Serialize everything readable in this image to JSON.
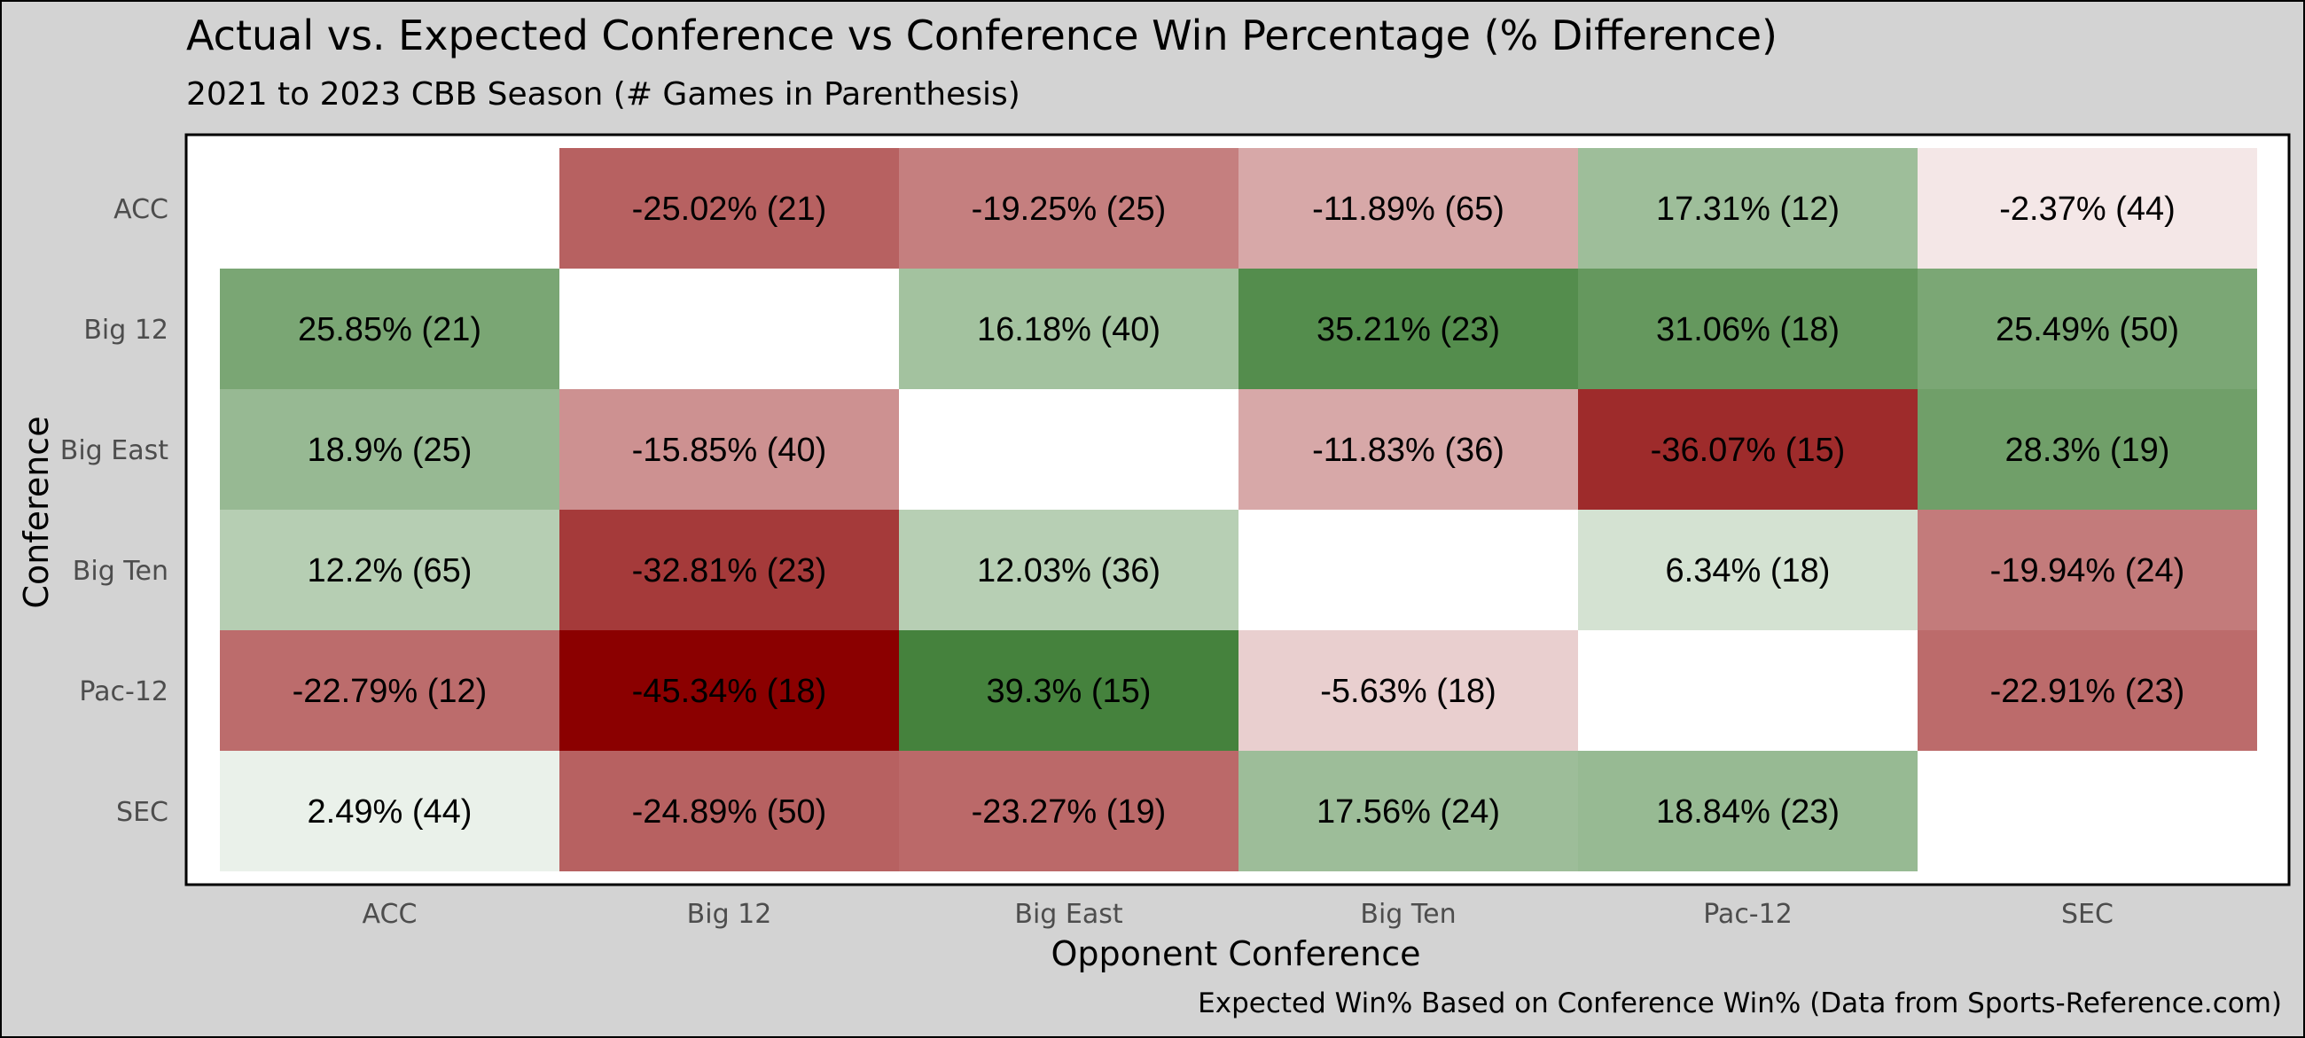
{
  "chart_data": {
    "type": "heatmap",
    "title": "Actual vs. Expected Conference vs Conference Win Percentage (% Difference)",
    "subtitle": "2021 to 2023 CBB Season (# Games in Parenthesis)",
    "xlabel": "Opponent Conference",
    "ylabel": "Conference",
    "caption": "Expected Win% Based on Conference Win% (Data from Sports-Reference.com)",
    "x_categories": [
      "ACC",
      "Big 12",
      "Big East",
      "Big Ten",
      "Pac-12",
      "SEC"
    ],
    "y_categories": [
      "ACC",
      "Big 12",
      "Big East",
      "Big Ten",
      "Pac-12",
      "SEC"
    ],
    "colors": {
      "negative": "#8b0000",
      "positive": "#2e7325",
      "neutral": "#ffffff",
      "panel": "#ffffff",
      "background": "#d3d3d3"
    },
    "cells": [
      {
        "row": "ACC",
        "col": "Big 12",
        "value": -25.02,
        "games": 21,
        "label": "-25.02% (21)"
      },
      {
        "row": "ACC",
        "col": "Big East",
        "value": -19.25,
        "games": 25,
        "label": "-19.25% (25)"
      },
      {
        "row": "ACC",
        "col": "Big Ten",
        "value": -11.89,
        "games": 65,
        "label": "-11.89% (65)"
      },
      {
        "row": "ACC",
        "col": "Pac-12",
        "value": 17.31,
        "games": 12,
        "label": "17.31% (12)"
      },
      {
        "row": "ACC",
        "col": "SEC",
        "value": -2.37,
        "games": 44,
        "label": "-2.37% (44)"
      },
      {
        "row": "Big 12",
        "col": "ACC",
        "value": 25.85,
        "games": 21,
        "label": "25.85% (21)"
      },
      {
        "row": "Big 12",
        "col": "Big East",
        "value": 16.18,
        "games": 40,
        "label": "16.18% (40)"
      },
      {
        "row": "Big 12",
        "col": "Big Ten",
        "value": 35.21,
        "games": 23,
        "label": "35.21% (23)"
      },
      {
        "row": "Big 12",
        "col": "Pac-12",
        "value": 31.06,
        "games": 18,
        "label": "31.06% (18)"
      },
      {
        "row": "Big 12",
        "col": "SEC",
        "value": 25.49,
        "games": 50,
        "label": "25.49% (50)"
      },
      {
        "row": "Big East",
        "col": "ACC",
        "value": 18.9,
        "games": 25,
        "label": "18.9% (25)"
      },
      {
        "row": "Big East",
        "col": "Big 12",
        "value": -15.85,
        "games": 40,
        "label": "-15.85% (40)"
      },
      {
        "row": "Big East",
        "col": "Big Ten",
        "value": -11.83,
        "games": 36,
        "label": "-11.83% (36)"
      },
      {
        "row": "Big East",
        "col": "Pac-12",
        "value": -36.07,
        "games": 15,
        "label": "-36.07% (15)"
      },
      {
        "row": "Big East",
        "col": "SEC",
        "value": 28.3,
        "games": 19,
        "label": "28.3% (19)"
      },
      {
        "row": "Big Ten",
        "col": "ACC",
        "value": 12.2,
        "games": 65,
        "label": "12.2% (65)"
      },
      {
        "row": "Big Ten",
        "col": "Big 12",
        "value": -32.81,
        "games": 23,
        "label": "-32.81% (23)"
      },
      {
        "row": "Big Ten",
        "col": "Big East",
        "value": 12.03,
        "games": 36,
        "label": "12.03% (36)"
      },
      {
        "row": "Big Ten",
        "col": "Pac-12",
        "value": 6.34,
        "games": 18,
        "label": "6.34% (18)"
      },
      {
        "row": "Big Ten",
        "col": "SEC",
        "value": -19.94,
        "games": 24,
        "label": "-19.94% (24)"
      },
      {
        "row": "Pac-12",
        "col": "ACC",
        "value": -22.79,
        "games": 12,
        "label": "-22.79% (12)"
      },
      {
        "row": "Pac-12",
        "col": "Big 12",
        "value": -45.34,
        "games": 18,
        "label": "-45.34% (18)"
      },
      {
        "row": "Pac-12",
        "col": "Big East",
        "value": 39.3,
        "games": 15,
        "label": "39.3% (15)"
      },
      {
        "row": "Pac-12",
        "col": "Big Ten",
        "value": -5.63,
        "games": 18,
        "label": "-5.63% (18)"
      },
      {
        "row": "Pac-12",
        "col": "SEC",
        "value": -22.91,
        "games": 23,
        "label": "-22.91% (23)"
      },
      {
        "row": "SEC",
        "col": "ACC",
        "value": 2.49,
        "games": 44,
        "label": "2.49% (44)"
      },
      {
        "row": "SEC",
        "col": "Big 12",
        "value": -24.89,
        "games": 50,
        "label": "-24.89% (50)"
      },
      {
        "row": "SEC",
        "col": "Big East",
        "value": -23.27,
        "games": 19,
        "label": "-23.27% (19)"
      },
      {
        "row": "SEC",
        "col": "Big Ten",
        "value": 17.56,
        "games": 24,
        "label": "17.56% (24)"
      },
      {
        "row": "SEC",
        "col": "Pac-12",
        "value": 18.84,
        "games": 23,
        "label": "18.84% (23)"
      }
    ]
  }
}
